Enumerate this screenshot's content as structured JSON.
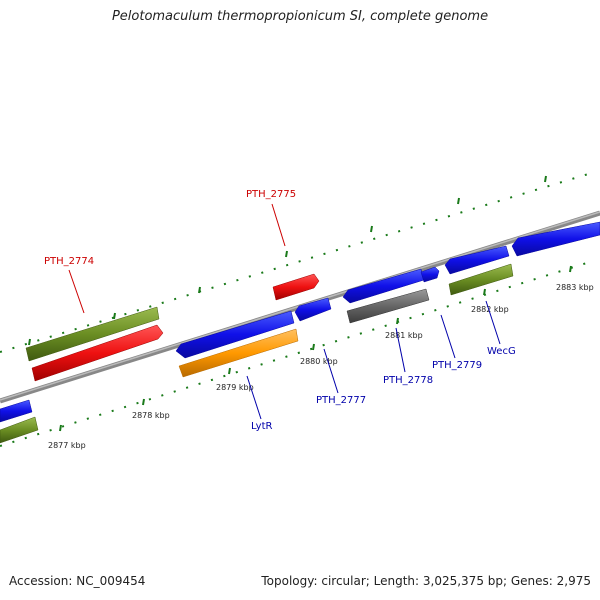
{
  "title": "Pelotomaculum thermopropionicum SI, complete genome",
  "footer": {
    "accession": "Accession: NC_009454",
    "summary": "Topology: circular; Length: 3,025,375 bp; Genes: 2,975"
  },
  "scale_labels": [
    "2877 kbp",
    "2878 kbp",
    "2879 kbp",
    "2880 kbp",
    "2881 kbp",
    "2882 kbp",
    "2883 kbp"
  ],
  "gene_labels": {
    "pth2774": "PTH_2774",
    "pth2775": "PTH_2775",
    "pth2777": "PTH_2777",
    "lytr": "LytR",
    "pth2778": "PTH_2778",
    "pth2779": "PTH_2779",
    "wecg": "WecG"
  },
  "colors": {
    "cds_blue": "#1010e8",
    "red": "#ee1111",
    "green": "#6b8e23",
    "orange": "#ff9900",
    "gray": "#666666",
    "tick_green": "#1a7a1a",
    "label_red": "#cc0000",
    "label_blue": "#0000aa"
  }
}
